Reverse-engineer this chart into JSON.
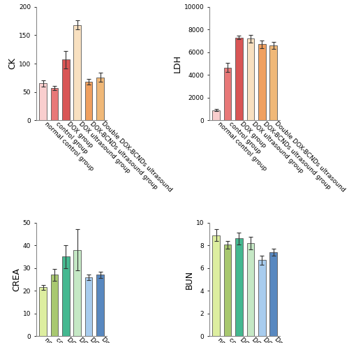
{
  "categories": [
    "normal control group",
    "control group",
    "DOX group",
    "DOX ultrasound group",
    "DOX-BCNDs ultrasound group",
    "Double DOX-BCNDs ultrasound"
  ],
  "CK": {
    "values": [
      65,
      57,
      107,
      168,
      68,
      76
    ],
    "errors": [
      5,
      4,
      15,
      8,
      5,
      8
    ],
    "colors": [
      "#f9cece",
      "#e87878",
      "#d95555",
      "#f8e0c0",
      "#f0a060",
      "#f0b878"
    ],
    "ylim": [
      0,
      200
    ],
    "yticks": [
      0,
      50,
      100,
      150,
      200
    ],
    "ylabel": "CK"
  },
  "LDH": {
    "values": [
      900,
      4650,
      7300,
      7200,
      6700,
      6600
    ],
    "errors": [
      100,
      400,
      150,
      350,
      350,
      300
    ],
    "colors": [
      "#f9cece",
      "#e87878",
      "#d95555",
      "#f8e0c0",
      "#f0a060",
      "#f0b878"
    ],
    "ylim": [
      0,
      10000
    ],
    "yticks": [
      0,
      2000,
      4000,
      6000,
      8000,
      10000
    ],
    "ylabel": "LDH"
  },
  "CREA": {
    "values": [
      21.5,
      27,
      35,
      38,
      26,
      27
    ],
    "errors": [
      1.0,
      2.5,
      5,
      9,
      1.2,
      1.5
    ],
    "colors": [
      "#ddeea0",
      "#a8c870",
      "#44b890",
      "#c5e8c5",
      "#a8ccee",
      "#5888c0"
    ],
    "ylim": [
      0,
      50
    ],
    "yticks": [
      0,
      10,
      20,
      30,
      40,
      50
    ],
    "ylabel": "CREA"
  },
  "BUN": {
    "values": [
      8.9,
      8.05,
      8.6,
      8.2,
      6.7,
      7.4
    ],
    "errors": [
      0.5,
      0.35,
      0.55,
      0.55,
      0.4,
      0.3
    ],
    "colors": [
      "#ddeea0",
      "#a8c870",
      "#44b890",
      "#c5e8c5",
      "#a8ccee",
      "#5888c0"
    ],
    "ylim": [
      0,
      10
    ],
    "yticks": [
      0,
      2,
      4,
      6,
      8,
      10
    ],
    "ylabel": "BUN"
  },
  "background_color": "#ffffff",
  "tick_fontsize": 6.5,
  "label_fontsize": 9,
  "bar_width": 0.65,
  "figure_background": "#ffffff"
}
